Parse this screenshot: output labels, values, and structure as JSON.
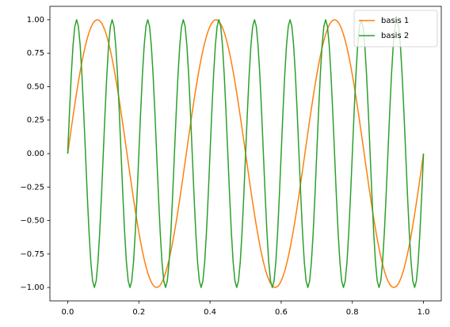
{
  "chart_data": {
    "type": "line",
    "x": [
      0,
      0.005,
      0.01,
      0.015,
      0.02,
      0.025,
      0.03,
      0.035,
      0.04,
      0.045,
      0.05,
      0.055,
      0.06,
      0.065,
      0.07,
      0.075,
      0.08,
      0.085,
      0.09,
      0.095,
      0.1,
      0.105,
      0.11,
      0.115,
      0.12,
      0.125,
      0.13,
      0.135,
      0.14,
      0.145,
      0.15,
      0.155,
      0.16,
      0.165,
      0.17,
      0.175,
      0.18,
      0.185,
      0.19,
      0.195,
      0.2,
      0.205,
      0.21,
      0.215,
      0.22,
      0.225,
      0.23,
      0.235,
      0.24,
      0.245,
      0.25,
      0.255,
      0.26,
      0.265,
      0.27,
      0.275,
      0.28,
      0.285,
      0.29,
      0.295,
      0.3,
      0.305,
      0.31,
      0.315,
      0.32,
      0.325,
      0.33,
      0.335,
      0.34,
      0.345,
      0.35,
      0.355,
      0.36,
      0.365,
      0.37,
      0.375,
      0.38,
      0.385,
      0.39,
      0.395,
      0.4,
      0.405,
      0.41,
      0.415,
      0.42,
      0.425,
      0.43,
      0.435,
      0.44,
      0.445,
      0.45,
      0.455,
      0.46,
      0.465,
      0.47,
      0.475,
      0.48,
      0.485,
      0.49,
      0.495,
      0.5,
      0.505,
      0.51,
      0.515,
      0.52,
      0.525,
      0.53,
      0.535,
      0.54,
      0.545,
      0.55,
      0.555,
      0.56,
      0.565,
      0.57,
      0.575,
      0.58,
      0.585,
      0.59,
      0.595,
      0.6,
      0.605,
      0.61,
      0.615,
      0.62,
      0.625,
      0.63,
      0.635,
      0.64,
      0.645,
      0.65,
      0.655,
      0.66,
      0.665,
      0.67,
      0.675,
      0.68,
      0.685,
      0.69,
      0.695,
      0.7,
      0.705,
      0.71,
      0.715,
      0.72,
      0.725,
      0.73,
      0.735,
      0.74,
      0.745,
      0.75,
      0.755,
      0.76,
      0.765,
      0.77,
      0.775,
      0.78,
      0.785,
      0.79,
      0.795,
      0.8,
      0.805,
      0.81,
      0.815,
      0.82,
      0.825,
      0.83,
      0.835,
      0.84,
      0.845,
      0.85,
      0.855,
      0.86,
      0.865,
      0.87,
      0.875,
      0.88,
      0.885,
      0.89,
      0.895,
      0.9,
      0.905,
      0.91,
      0.915,
      0.92,
      0.925,
      0.93,
      0.935,
      0.94,
      0.945,
      0.95,
      0.955,
      0.96,
      0.965,
      0.97,
      0.975,
      0.98,
      0.985,
      0.99,
      0.995,
      1
    ],
    "series": [
      {
        "name": "basis 1",
        "color": "#ff7f0e",
        "values": [
          0,
          0.0941,
          0.1874,
          0.279,
          0.3681,
          0.454,
          0.5358,
          0.6129,
          0.6845,
          0.7501,
          0.809,
          0.8607,
          0.9048,
          0.9409,
          0.9686,
          0.9877,
          0.998,
          0.9995,
          0.9921,
          0.9759,
          0.9511,
          0.9178,
          0.8763,
          0.8271,
          0.7705,
          0.7071,
          0.6374,
          0.5621,
          0.4818,
          0.3971,
          0.309,
          0.2181,
          0.1253,
          0.0314,
          -0.0628,
          -0.1564,
          -0.2487,
          -0.3387,
          -0.4258,
          -0.509,
          -0.5878,
          -0.6613,
          -0.729,
          -0.7902,
          -0.8443,
          -0.891,
          -0.9298,
          -0.9603,
          -0.9823,
          -0.9956,
          -1,
          -0.9956,
          -0.9823,
          -0.9603,
          -0.9298,
          -0.891,
          -0.8443,
          -0.7902,
          -0.729,
          -0.6613,
          -0.5878,
          -0.509,
          -0.4258,
          -0.3387,
          -0.2487,
          -0.1564,
          -0.0628,
          0.0314,
          0.1253,
          0.2181,
          0.309,
          0.3971,
          0.4818,
          0.5621,
          0.6374,
          0.7071,
          0.7705,
          0.8271,
          0.8763,
          0.9178,
          0.9511,
          0.9759,
          0.9921,
          0.9995,
          0.998,
          0.9877,
          0.9686,
          0.9409,
          0.9048,
          0.8607,
          0.809,
          0.7501,
          0.6845,
          0.6129,
          0.5358,
          0.454,
          0.3681,
          0.279,
          0.1874,
          0.0941,
          0,
          -0.0941,
          -0.1874,
          -0.279,
          -0.3681,
          -0.454,
          -0.5358,
          -0.6129,
          -0.6845,
          -0.7501,
          -0.809,
          -0.8607,
          -0.9048,
          -0.9409,
          -0.9686,
          -0.9877,
          -0.998,
          -0.9995,
          -0.9921,
          -0.9759,
          -0.9511,
          -0.9178,
          -0.8763,
          -0.8271,
          -0.7705,
          -0.7071,
          -0.6374,
          -0.5621,
          -0.4818,
          -0.3971,
          -0.309,
          -0.2181,
          -0.1253,
          -0.0314,
          0.0628,
          0.1564,
          0.2487,
          0.3387,
          0.4258,
          0.509,
          0.5878,
          0.6613,
          0.729,
          0.7902,
          0.8443,
          0.891,
          0.9298,
          0.9603,
          0.9823,
          0.9956,
          1,
          0.9956,
          0.9823,
          0.9603,
          0.9298,
          0.891,
          0.8443,
          0.7902,
          0.729,
          0.6613,
          0.5878,
          0.509,
          0.4258,
          0.3387,
          0.2487,
          0.1564,
          0.0628,
          -0.0314,
          -0.1253,
          -0.2181,
          -0.309,
          -0.3971,
          -0.4818,
          -0.5621,
          -0.6374,
          -0.7071,
          -0.7705,
          -0.8271,
          -0.8763,
          -0.9178,
          -0.9511,
          -0.9759,
          -0.9921,
          -0.9995,
          -0.998,
          -0.9877,
          -0.9686,
          -0.9409,
          -0.9048,
          -0.8607,
          -0.809,
          -0.7501,
          -0.6845,
          -0.6129,
          -0.5358,
          -0.454,
          -0.3681,
          -0.279,
          -0.1874,
          -0.0941,
          0
        ]
      },
      {
        "name": "basis 2",
        "color": "#2ca02c",
        "values": [
          0,
          0.309,
          0.5878,
          0.809,
          0.9511,
          1,
          0.9511,
          0.809,
          0.5878,
          0.309,
          0,
          -0.309,
          -0.5878,
          -0.809,
          -0.9511,
          -1,
          -0.9511,
          -0.809,
          -0.5878,
          -0.309,
          0,
          0.309,
          0.5878,
          0.809,
          0.9511,
          1,
          0.9511,
          0.809,
          0.5878,
          0.309,
          0,
          -0.309,
          -0.5878,
          -0.809,
          -0.9511,
          -1,
          -0.9511,
          -0.809,
          -0.5878,
          -0.309,
          0,
          0.309,
          0.5878,
          0.809,
          0.9511,
          1,
          0.9511,
          0.809,
          0.5878,
          0.309,
          0,
          -0.309,
          -0.5878,
          -0.809,
          -0.9511,
          -1,
          -0.9511,
          -0.809,
          -0.5878,
          -0.309,
          0,
          0.309,
          0.5878,
          0.809,
          0.9511,
          1,
          0.9511,
          0.809,
          0.5878,
          0.309,
          0,
          -0.309,
          -0.5878,
          -0.809,
          -0.9511,
          -1,
          -0.9511,
          -0.809,
          -0.5878,
          -0.309,
          0,
          0.309,
          0.5878,
          0.809,
          0.9511,
          1,
          0.9511,
          0.809,
          0.5878,
          0.309,
          0,
          -0.309,
          -0.5878,
          -0.809,
          -0.9511,
          -1,
          -0.9511,
          -0.809,
          -0.5878,
          -0.309,
          0,
          0.309,
          0.5878,
          0.809,
          0.9511,
          1,
          0.9511,
          0.809,
          0.5878,
          0.309,
          0,
          -0.309,
          -0.5878,
          -0.809,
          -0.9511,
          -1,
          -0.9511,
          -0.809,
          -0.5878,
          -0.309,
          0,
          0.309,
          0.5878,
          0.809,
          0.9511,
          1,
          0.9511,
          0.809,
          0.5878,
          0.309,
          0,
          -0.309,
          -0.5878,
          -0.809,
          -0.9511,
          -1,
          -0.9511,
          -0.809,
          -0.5878,
          -0.309,
          0,
          0.309,
          0.5878,
          0.809,
          0.9511,
          1,
          0.9511,
          0.809,
          0.5878,
          0.309,
          0,
          -0.309,
          -0.5878,
          -0.809,
          -0.9511,
          -1,
          -0.9511,
          -0.809,
          -0.5878,
          -0.309,
          0,
          0.309,
          0.5878,
          0.809,
          0.9511,
          1,
          0.9511,
          0.809,
          0.5878,
          0.309,
          0,
          -0.309,
          -0.5878,
          -0.809,
          -0.9511,
          -1,
          -0.9511,
          -0.809,
          -0.5878,
          -0.309,
          0,
          0.309,
          0.5878,
          0.809,
          0.9511,
          1,
          0.9511,
          0.809,
          0.5878,
          0.309,
          0,
          -0.309,
          -0.5878,
          -0.809,
          -0.9511,
          -1,
          -0.9511,
          -0.809,
          -0.5878,
          -0.309,
          0
        ]
      }
    ],
    "xlim": [
      -0.05,
      1.05
    ],
    "ylim": [
      -1.1,
      1.1
    ],
    "xticks": [
      {
        "value": 0,
        "label": "0.0"
      },
      {
        "value": 0.2,
        "label": "0.2"
      },
      {
        "value": 0.4,
        "label": "0.4"
      },
      {
        "value": 0.6,
        "label": "0.6"
      },
      {
        "value": 0.8,
        "label": "0.8"
      },
      {
        "value": 1,
        "label": "1.0"
      }
    ],
    "yticks": [
      {
        "value": -1,
        "label": "−1.00"
      },
      {
        "value": -0.75,
        "label": "−0.75"
      },
      {
        "value": -0.5,
        "label": "−0.50"
      },
      {
        "value": -0.25,
        "label": "−0.25"
      },
      {
        "value": 0,
        "label": "0.00"
      },
      {
        "value": 0.25,
        "label": "0.25"
      },
      {
        "value": 0.5,
        "label": "0.50"
      },
      {
        "value": 0.75,
        "label": "0.75"
      },
      {
        "value": 1,
        "label": "1.00"
      }
    ],
    "grid": false,
    "legend": "upper right"
  }
}
